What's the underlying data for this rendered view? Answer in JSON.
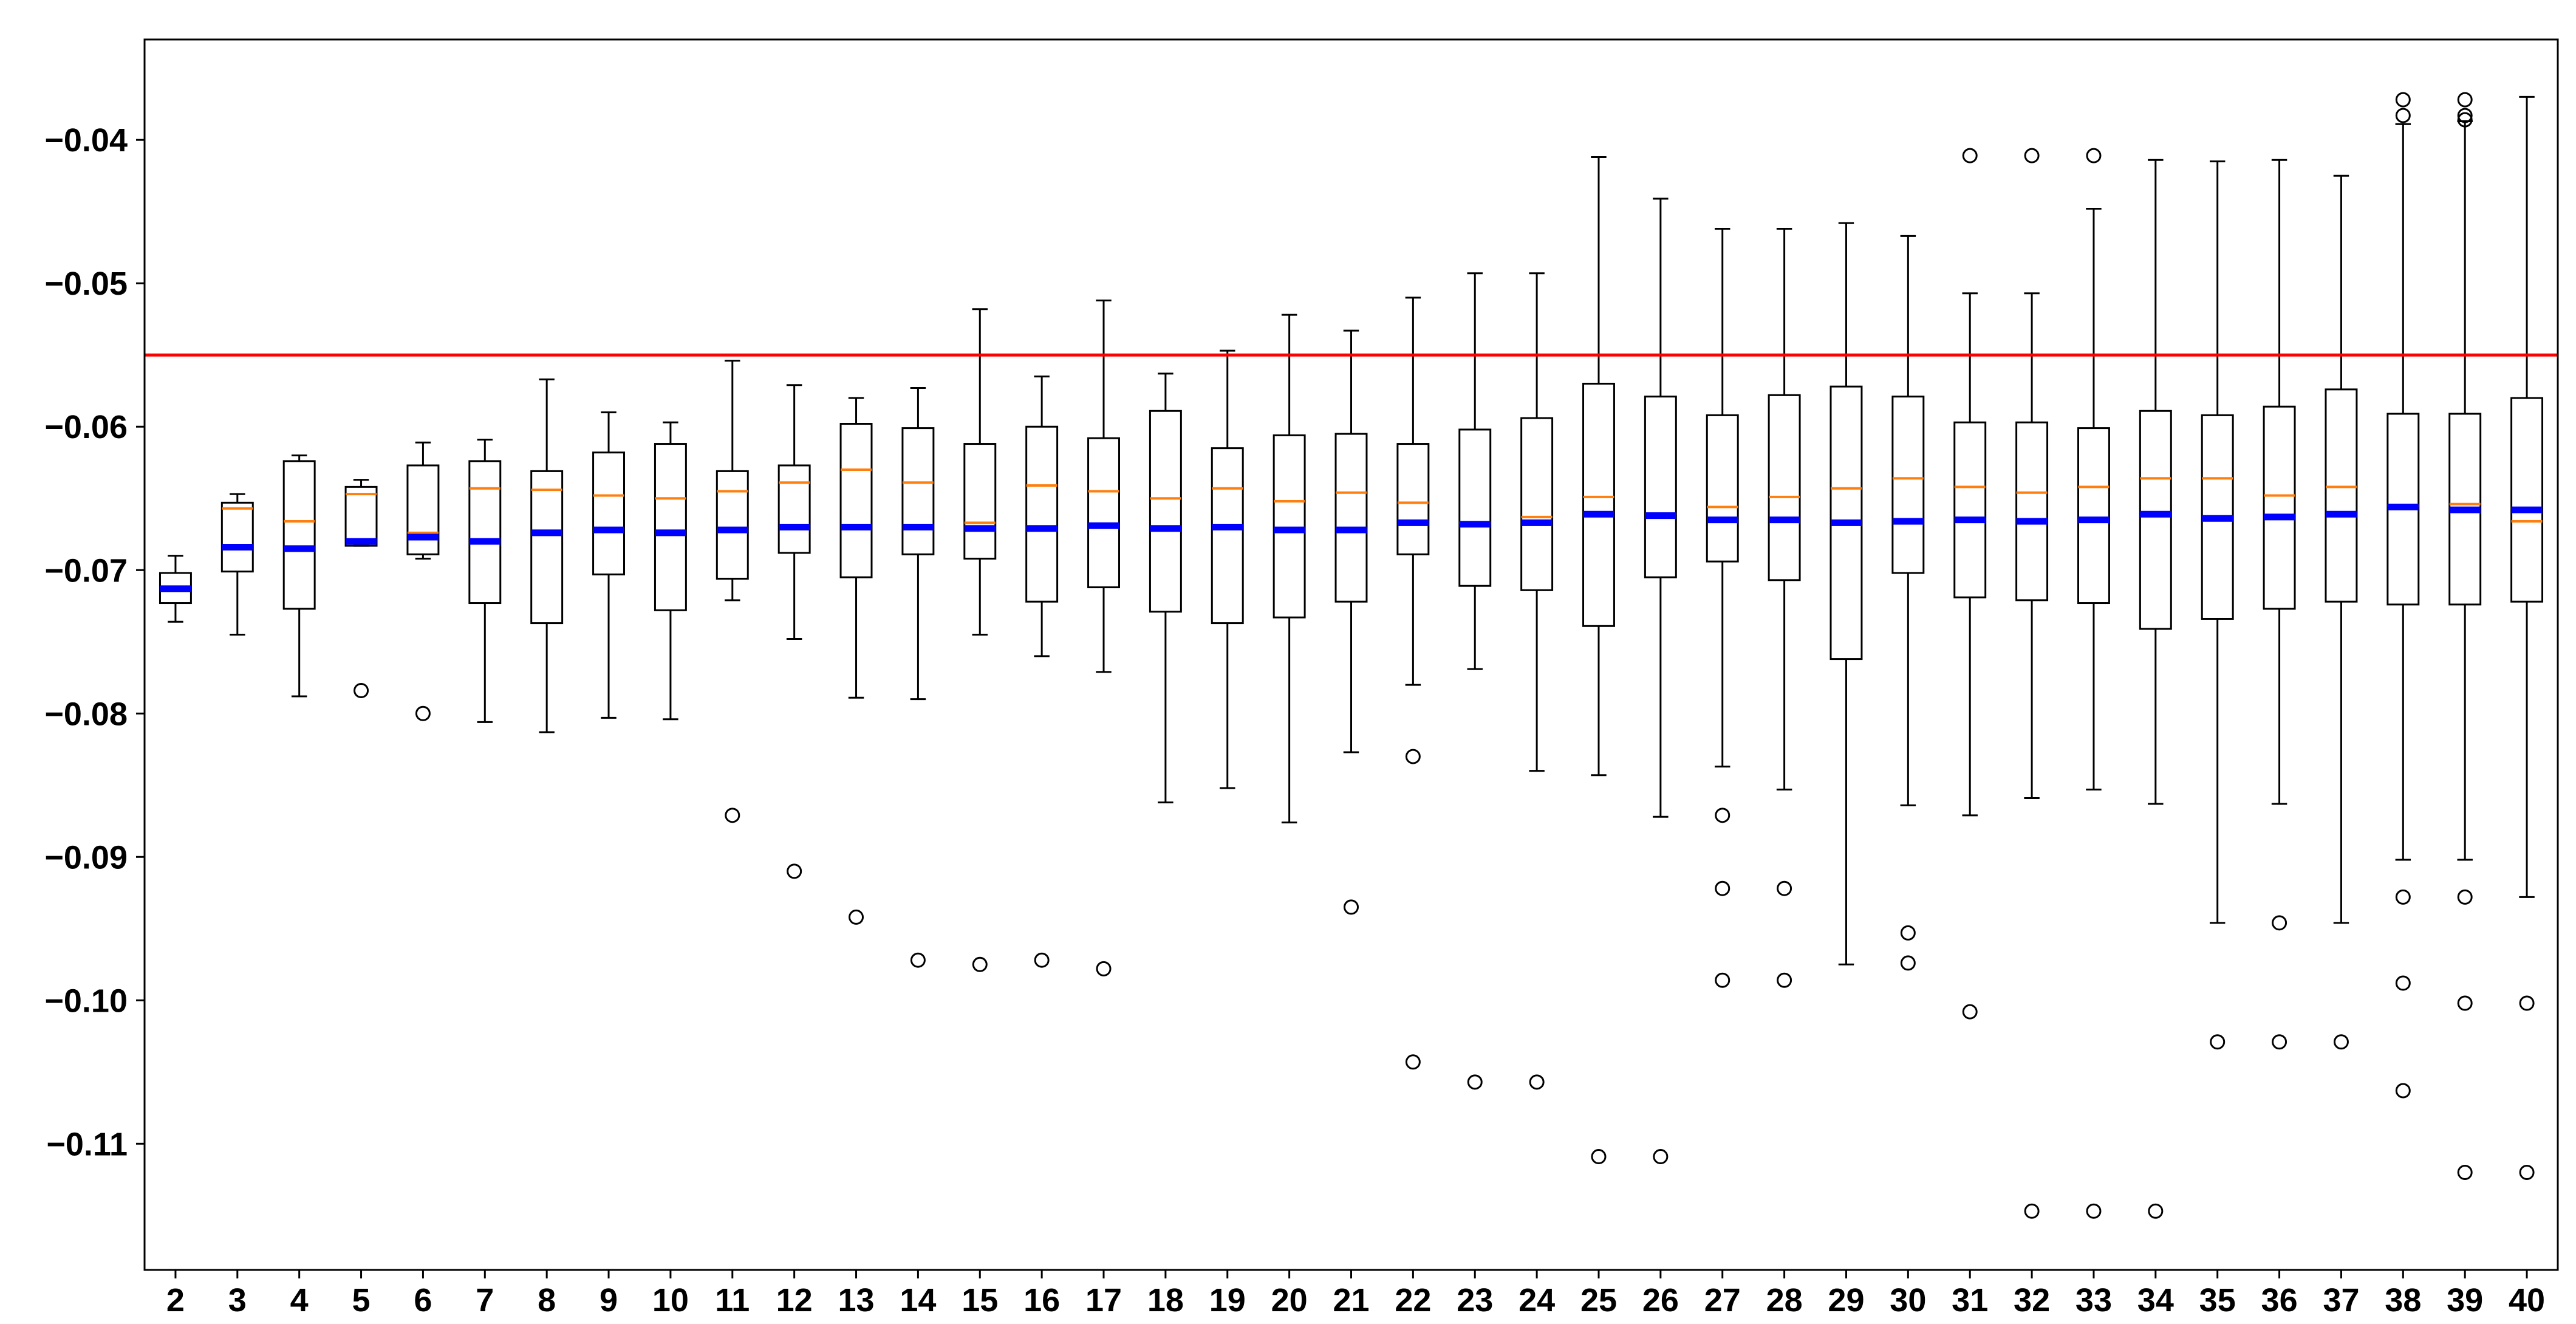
{
  "chart_data": {
    "type": "box",
    "title": "",
    "xlabel": "",
    "ylabel": "",
    "xlim": [
      1.5,
      40.5
    ],
    "ylim": [
      -0.1188,
      -0.033
    ],
    "x_ticks": [
      "2",
      "3",
      "4",
      "5",
      "6",
      "7",
      "8",
      "9",
      "10",
      "11",
      "12",
      "13",
      "14",
      "15",
      "16",
      "17",
      "18",
      "19",
      "20",
      "21",
      "22",
      "23",
      "24",
      "25",
      "26",
      "27",
      "28",
      "29",
      "30",
      "31",
      "32",
      "33",
      "34",
      "35",
      "36",
      "37",
      "38",
      "39",
      "40"
    ],
    "y_ticks": [
      -0.04,
      -0.05,
      -0.06,
      -0.07,
      -0.08,
      -0.09,
      -0.1,
      -0.11
    ],
    "y_tick_labels": [
      "−0.04",
      "−0.05",
      "−0.06",
      "−0.07",
      "−0.08",
      "−0.09",
      "−0.10",
      "−0.11"
    ],
    "reference_line": {
      "y": -0.055,
      "color": "#ff0000"
    },
    "colors": {
      "box": "#000000",
      "median": "#ff7f0e",
      "mean": "#0000ff",
      "reference": "#ff0000"
    },
    "boxes": [
      {
        "x": "2",
        "whislo": -0.0736,
        "q1": -0.0723,
        "med": -0.0713,
        "q3": -0.0702,
        "whishi": -0.069,
        "mean": -0.0713,
        "fliers": []
      },
      {
        "x": "3",
        "whislo": -0.0745,
        "q1": -0.0701,
        "med": -0.0657,
        "q3": -0.0653,
        "whishi": -0.0647,
        "mean": -0.0684,
        "fliers": []
      },
      {
        "x": "4",
        "whislo": -0.0788,
        "q1": -0.0727,
        "med": -0.0666,
        "q3": -0.0624,
        "whishi": -0.062,
        "mean": -0.0685,
        "fliers": []
      },
      {
        "x": "5",
        "whislo": -0.0683,
        "q1": -0.0683,
        "med": -0.0647,
        "q3": -0.0642,
        "whishi": -0.0637,
        "mean": -0.068,
        "fliers": [
          -0.0784
        ]
      },
      {
        "x": "6",
        "whislo": -0.0692,
        "q1": -0.0689,
        "med": -0.0674,
        "q3": -0.0627,
        "whishi": -0.0611,
        "mean": -0.0677,
        "fliers": [
          -0.08
        ]
      },
      {
        "x": "7",
        "whislo": -0.0806,
        "q1": -0.0723,
        "med": -0.0643,
        "q3": -0.0624,
        "whishi": -0.0609,
        "mean": -0.068,
        "fliers": []
      },
      {
        "x": "8",
        "whislo": -0.0813,
        "q1": -0.0737,
        "med": -0.0644,
        "q3": -0.0631,
        "whishi": -0.0567,
        "mean": -0.0674,
        "fliers": []
      },
      {
        "x": "9",
        "whislo": -0.0803,
        "q1": -0.0703,
        "med": -0.0648,
        "q3": -0.0618,
        "whishi": -0.059,
        "mean": -0.0672,
        "fliers": []
      },
      {
        "x": "10",
        "whislo": -0.0804,
        "q1": -0.0728,
        "med": -0.065,
        "q3": -0.0612,
        "whishi": -0.0597,
        "mean": -0.0674,
        "fliers": []
      },
      {
        "x": "11",
        "whislo": -0.0721,
        "q1": -0.0706,
        "med": -0.0645,
        "q3": -0.0631,
        "whishi": -0.0554,
        "mean": -0.0672,
        "fliers": [
          -0.0871
        ]
      },
      {
        "x": "12",
        "whislo": -0.0748,
        "q1": -0.0688,
        "med": -0.0639,
        "q3": -0.0627,
        "whishi": -0.0571,
        "mean": -0.067,
        "fliers": [
          -0.091
        ]
      },
      {
        "x": "13",
        "whislo": -0.0789,
        "q1": -0.0705,
        "med": -0.063,
        "q3": -0.0598,
        "whishi": -0.058,
        "mean": -0.067,
        "fliers": [
          -0.0942
        ]
      },
      {
        "x": "14",
        "whislo": -0.079,
        "q1": -0.0689,
        "med": -0.0639,
        "q3": -0.0601,
        "whishi": -0.0573,
        "mean": -0.067,
        "fliers": [
          -0.0972
        ]
      },
      {
        "x": "15",
        "whislo": -0.0745,
        "q1": -0.0692,
        "med": -0.0667,
        "q3": -0.0612,
        "whishi": -0.0518,
        "mean": -0.0671,
        "fliers": [
          -0.0975
        ]
      },
      {
        "x": "16",
        "whislo": -0.076,
        "q1": -0.0722,
        "med": -0.0641,
        "q3": -0.06,
        "whishi": -0.0565,
        "mean": -0.0671,
        "fliers": [
          -0.0972
        ]
      },
      {
        "x": "17",
        "whislo": -0.0771,
        "q1": -0.0712,
        "med": -0.0645,
        "q3": -0.0608,
        "whishi": -0.0512,
        "mean": -0.0669,
        "fliers": [
          -0.0978
        ]
      },
      {
        "x": "18",
        "whislo": -0.0862,
        "q1": -0.0729,
        "med": -0.065,
        "q3": -0.0589,
        "whishi": -0.0563,
        "mean": -0.0671,
        "fliers": []
      },
      {
        "x": "19",
        "whislo": -0.0852,
        "q1": -0.0737,
        "med": -0.0643,
        "q3": -0.0615,
        "whishi": -0.0547,
        "mean": -0.067,
        "fliers": []
      },
      {
        "x": "20",
        "whislo": -0.0876,
        "q1": -0.0733,
        "med": -0.0652,
        "q3": -0.0606,
        "whishi": -0.0522,
        "mean": -0.0672,
        "fliers": []
      },
      {
        "x": "21",
        "whislo": -0.0827,
        "q1": -0.0722,
        "med": -0.0646,
        "q3": -0.0605,
        "whishi": -0.0533,
        "mean": -0.0672,
        "fliers": [
          -0.0935
        ]
      },
      {
        "x": "22",
        "whislo": -0.078,
        "q1": -0.0689,
        "med": -0.0653,
        "q3": -0.0612,
        "whishi": -0.051,
        "mean": -0.0667,
        "fliers": [
          -0.083,
          -0.1043
        ]
      },
      {
        "x": "23",
        "whislo": -0.0769,
        "q1": -0.0711,
        "med": -0.0667,
        "q3": -0.0602,
        "whishi": -0.0493,
        "mean": -0.0668,
        "fliers": [
          -0.1057
        ]
      },
      {
        "x": "24",
        "whislo": -0.084,
        "q1": -0.0714,
        "med": -0.0663,
        "q3": -0.0594,
        "whishi": -0.0493,
        "mean": -0.0667,
        "fliers": [
          -0.1057
        ]
      },
      {
        "x": "25",
        "whislo": -0.0843,
        "q1": -0.0739,
        "med": -0.0649,
        "q3": -0.057,
        "whishi": -0.0412,
        "mean": -0.0661,
        "fliers": [
          -0.1109
        ]
      },
      {
        "x": "26",
        "whislo": -0.0872,
        "q1": -0.0705,
        "med": -0.0661,
        "q3": -0.0579,
        "whishi": -0.0441,
        "mean": -0.0662,
        "fliers": [
          -0.1109
        ]
      },
      {
        "x": "27",
        "whislo": -0.0837,
        "q1": -0.0694,
        "med": -0.0656,
        "q3": -0.0592,
        "whishi": -0.0462,
        "mean": -0.0665,
        "fliers": [
          -0.0871,
          -0.0922,
          -0.0986
        ]
      },
      {
        "x": "28",
        "whislo": -0.0853,
        "q1": -0.0707,
        "med": -0.0649,
        "q3": -0.0578,
        "whishi": -0.0462,
        "mean": -0.0665,
        "fliers": [
          -0.0922,
          -0.0986
        ]
      },
      {
        "x": "29",
        "whislo": -0.0975,
        "q1": -0.0762,
        "med": -0.0643,
        "q3": -0.0572,
        "whishi": -0.0458,
        "mean": -0.0667,
        "fliers": []
      },
      {
        "x": "30",
        "whislo": -0.0864,
        "q1": -0.0702,
        "med": -0.0636,
        "q3": -0.0579,
        "whishi": -0.0467,
        "mean": -0.0666,
        "fliers": [
          -0.0953,
          -0.0974
        ]
      },
      {
        "x": "31",
        "whislo": -0.0871,
        "q1": -0.0719,
        "med": -0.0642,
        "q3": -0.0597,
        "whishi": -0.0507,
        "mean": -0.0665,
        "fliers": [
          -0.0411,
          -0.1008
        ]
      },
      {
        "x": "32",
        "whislo": -0.0859,
        "q1": -0.0721,
        "med": -0.0646,
        "q3": -0.0597,
        "whishi": -0.0507,
        "mean": -0.0666,
        "fliers": [
          -0.0411,
          -0.1147
        ]
      },
      {
        "x": "33",
        "whislo": -0.0853,
        "q1": -0.0723,
        "med": -0.0642,
        "q3": -0.0601,
        "whishi": -0.0448,
        "mean": -0.0665,
        "fliers": [
          -0.0411,
          -0.1147
        ]
      },
      {
        "x": "34",
        "whislo": -0.0863,
        "q1": -0.0741,
        "med": -0.0636,
        "q3": -0.0589,
        "whishi": -0.0414,
        "mean": -0.0661,
        "fliers": [
          -0.1147
        ]
      },
      {
        "x": "35",
        "whislo": -0.0946,
        "q1": -0.0734,
        "med": -0.0636,
        "q3": -0.0592,
        "whishi": -0.0415,
        "mean": -0.0664,
        "fliers": [
          -0.1029
        ]
      },
      {
        "x": "36",
        "whislo": -0.0863,
        "q1": -0.0727,
        "med": -0.0648,
        "q3": -0.0586,
        "whishi": -0.0414,
        "mean": -0.0663,
        "fliers": [
          -0.0946,
          -0.1029
        ]
      },
      {
        "x": "37",
        "whislo": -0.0946,
        "q1": -0.0722,
        "med": -0.0642,
        "q3": -0.0574,
        "whishi": -0.0425,
        "mean": -0.0661,
        "fliers": [
          -0.1029
        ]
      },
      {
        "x": "38",
        "whislo": -0.0902,
        "q1": -0.0724,
        "med": -0.0655,
        "q3": -0.0591,
        "whishi": -0.0389,
        "mean": -0.0656,
        "fliers": [
          -0.0372,
          -0.0383,
          -0.0928,
          -0.0988,
          -0.1063
        ]
      },
      {
        "x": "39",
        "whislo": -0.0902,
        "q1": -0.0724,
        "med": -0.0654,
        "q3": -0.0591,
        "whishi": -0.0387,
        "mean": -0.0658,
        "fliers": [
          -0.0372,
          -0.0383,
          -0.0386,
          -0.0928,
          -0.1002,
          -0.112
        ]
      },
      {
        "x": "40",
        "whislo": -0.0928,
        "q1": -0.0722,
        "med": -0.0666,
        "q3": -0.058,
        "whishi": -0.037,
        "mean": -0.0658,
        "fliers": [
          -0.1002,
          -0.112
        ]
      }
    ]
  }
}
